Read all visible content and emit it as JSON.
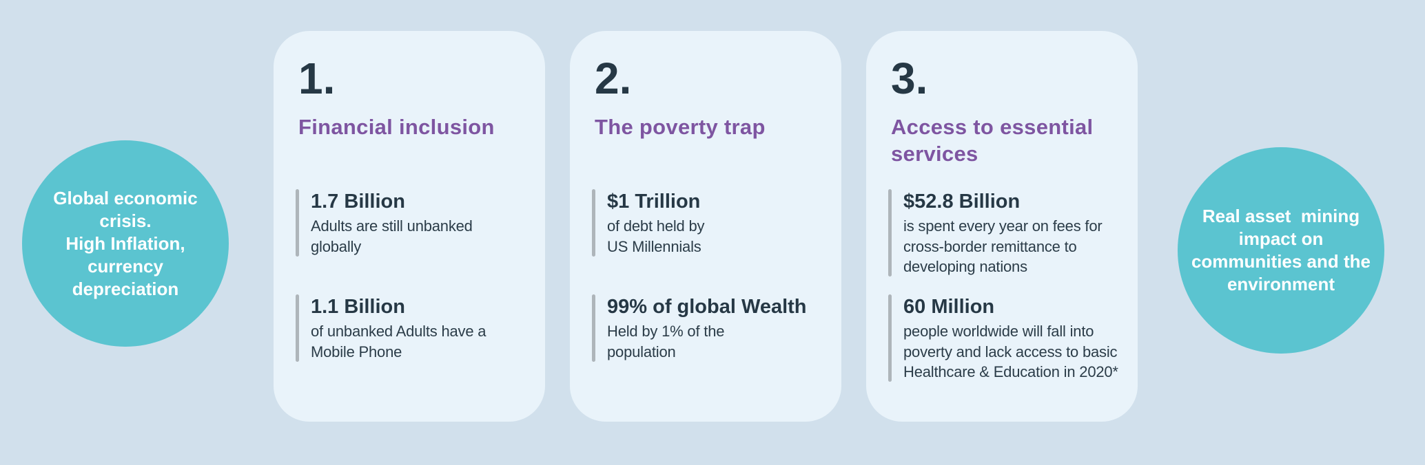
{
  "colors": {
    "page_bg": "#D1E0EC",
    "card_bg": "#E9F3FA",
    "bubble_teal": "#5BC4D0",
    "accent_purple": "#7E55A1",
    "text_dark": "#263845",
    "stat_bar_gray": "#AEB5BA",
    "bubble_text": "#FFFFFF"
  },
  "left_bubble": {
    "lines": [
      "Global economic",
      "crisis.",
      "High Inflation,",
      "currency",
      "depreciation"
    ]
  },
  "right_bubble": {
    "lines": [
      "Real asset  mining",
      "impact on",
      "communities and the",
      "environment"
    ]
  },
  "cards": [
    {
      "number": "1.",
      "title": "Financial inclusion",
      "stats": [
        {
          "value": "1.7 Billion",
          "desc": "Adults are still unbanked\nglobally"
        },
        {
          "value": "1.1 Billion",
          "desc": "of unbanked Adults have a\nMobile Phone"
        }
      ]
    },
    {
      "number": "2.",
      "title": "The poverty trap",
      "stats": [
        {
          "value": "$1 Trillion",
          "desc": "of debt held by\nUS Millennials"
        },
        {
          "value": "99% of global Wealth",
          "desc": "Held by 1% of the\npopulation"
        }
      ]
    },
    {
      "number": "3.",
      "title": "Access to essential\nservices",
      "stats": [
        {
          "value": "$52.8 Billion",
          "desc": "is spent every year on fees for\ncross-border remittance to\ndeveloping nations"
        },
        {
          "value": "60 Million",
          "desc": "people worldwide will fall into\npoverty and lack access to basic\nHealthcare & Education in 2020*"
        }
      ]
    }
  ]
}
